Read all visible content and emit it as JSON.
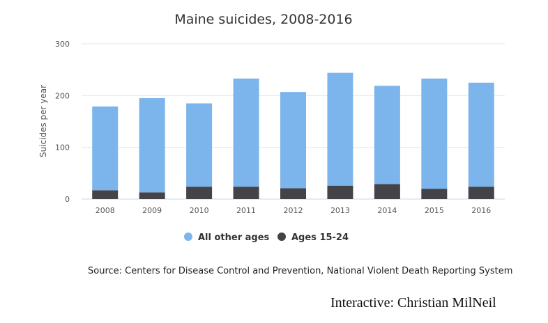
{
  "chart_data": {
    "type": "bar",
    "stacked": true,
    "title": "Maine suicides, 2008-2016",
    "ylabel": "Suicides per year",
    "xlabel": "",
    "categories": [
      "2008",
      "2009",
      "2010",
      "2011",
      "2012",
      "2013",
      "2014",
      "2015",
      "2016"
    ],
    "ylim": [
      0,
      300
    ],
    "yticks": [
      0,
      100,
      200,
      300
    ],
    "grid": true,
    "legend_position": "bottom",
    "series": [
      {
        "name": "Ages 15-24",
        "color": "#434348",
        "values": [
          17,
          13,
          24,
          24,
          21,
          26,
          29,
          20,
          24
        ]
      },
      {
        "name": "All other ages",
        "color": "#7cb5ec",
        "values": [
          162,
          182,
          161,
          209,
          186,
          218,
          190,
          213,
          201
        ]
      }
    ],
    "legend_order": [
      "All other ages",
      "Ages 15-24"
    ]
  },
  "source_text": "Source: Centers for Disease Control and Prevention, National Violent Death Reporting System",
  "credit_text": "Interactive: Christian MilNeil"
}
